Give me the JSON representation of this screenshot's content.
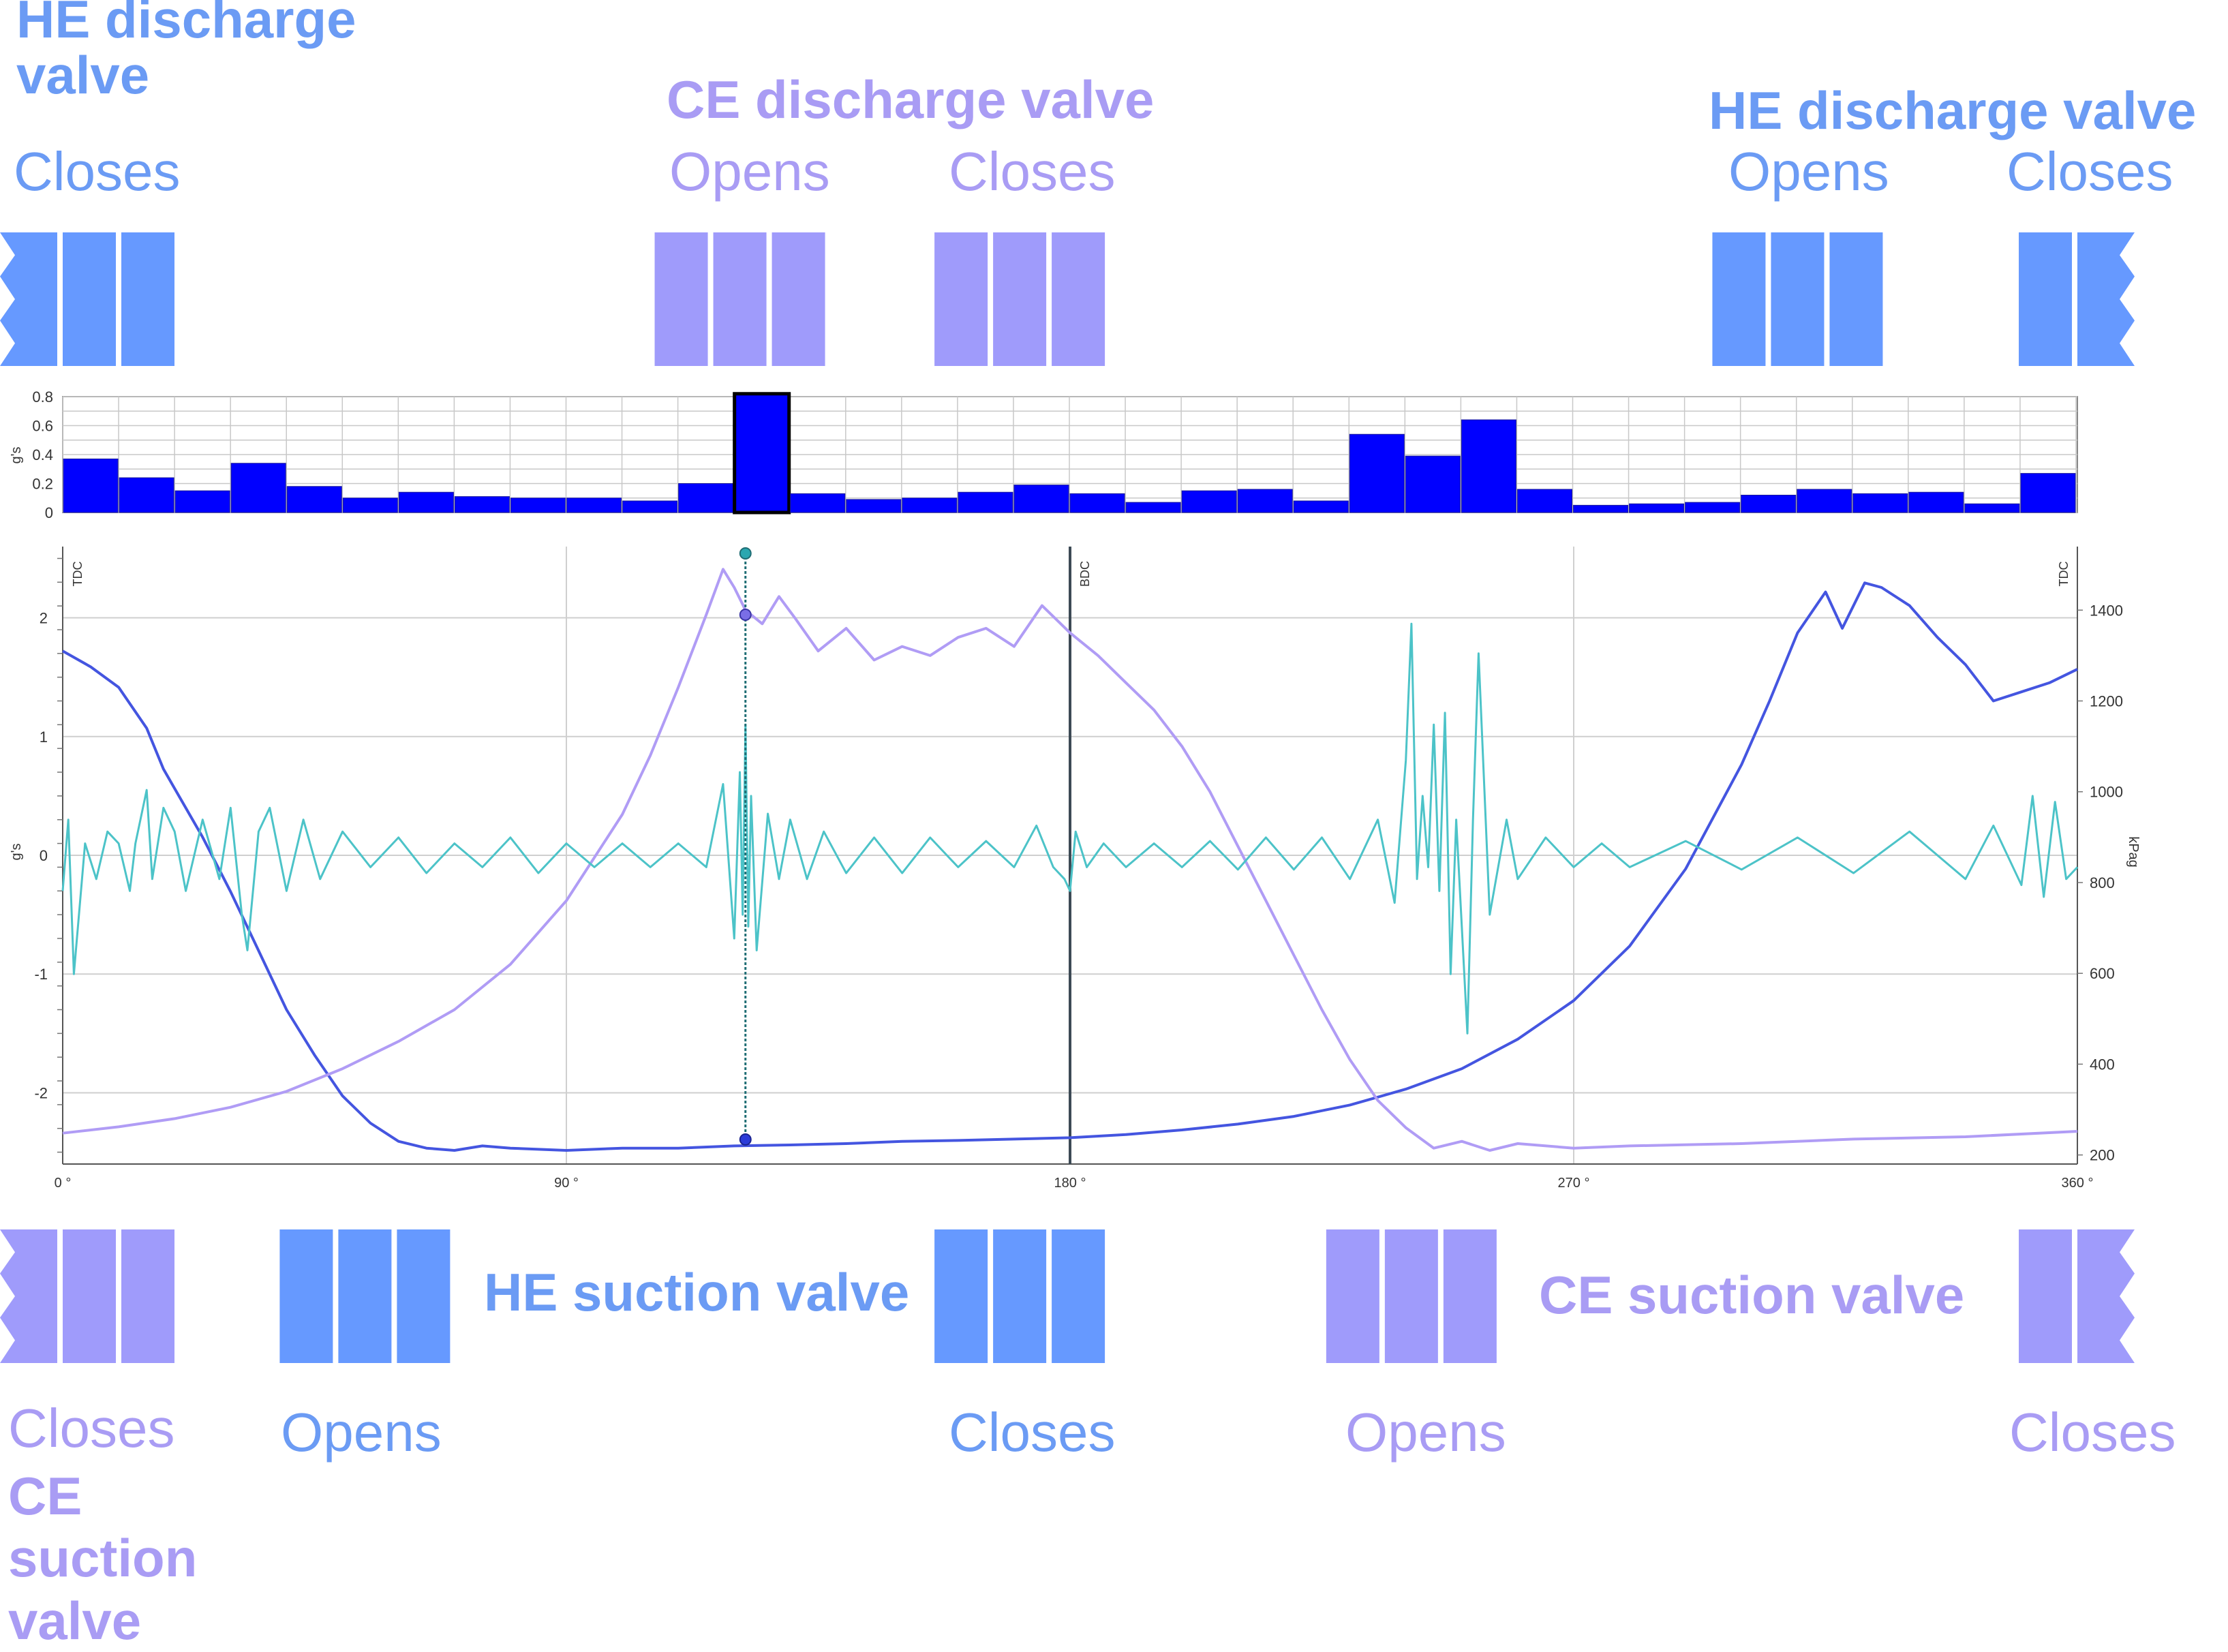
{
  "colors": {
    "he": "#6699ff",
    "ce": "#9f9bfb",
    "he_text": "#6b9bf4",
    "ce_text": "#a99cf4",
    "bar": "#0000ff",
    "vibration": "#4cc3c8",
    "he_pressure": "#4455e0",
    "ce_pressure": "#b09cf5",
    "cursor": "#2aa7b0"
  },
  "labels": {
    "he_discharge_top_left": "HE  discharge\nvalve",
    "ce_discharge": "CE discharge valve",
    "he_discharge_top_right": "HE discharge valve",
    "he_suction": "HE suction valve",
    "ce_suction": "CE suction valve",
    "ce_suction_bottom_left": "CE\nsuction\nvalve",
    "top_closes_1": "Closes",
    "top_opens_1": "Opens",
    "top_closes_2": "Closes",
    "top_opens_2": "Opens",
    "top_closes_3": "Closes",
    "bot_closes_1": "Closes",
    "bot_opens_1": "Opens",
    "bot_closes_2": "Closes",
    "bot_opens_2": "Opens",
    "bot_closes_3": "Closes"
  },
  "valve_events": {
    "top": [
      {
        "valve": "HE",
        "edge": "left-cut",
        "deg": 5
      },
      {
        "valve": "CE",
        "deg": 121
      },
      {
        "valve": "CE",
        "deg": 171
      },
      {
        "valve": "HE",
        "deg": 310
      },
      {
        "valve": "HE",
        "edge": "right-cut",
        "deg": 360
      }
    ],
    "bottom": [
      {
        "valve": "CE",
        "edge": "left-cut",
        "deg": 5
      },
      {
        "valve": "HE",
        "deg": 54
      },
      {
        "valve": "HE",
        "deg": 171
      },
      {
        "valve": "CE",
        "deg": 241
      },
      {
        "valve": "CE",
        "edge": "right-cut",
        "deg": 360
      }
    ]
  },
  "chart_data": [
    {
      "type": "bar",
      "ylabel": "g's",
      "ylim": [
        0,
        0.8
      ],
      "yticks": [
        "0",
        "0.2",
        "0.4",
        "0.6",
        "0.8"
      ],
      "grid": true,
      "highlight_index": 12,
      "values": [
        0.37,
        0.24,
        0.15,
        0.34,
        0.18,
        0.1,
        0.14,
        0.11,
        0.1,
        0.1,
        0.08,
        0.2,
        0.82,
        0.13,
        0.09,
        0.1,
        0.14,
        0.19,
        0.13,
        0.07,
        0.15,
        0.16,
        0.08,
        0.54,
        0.39,
        0.64,
        0.16,
        0.05,
        0.06,
        0.07,
        0.12,
        0.16,
        0.13,
        0.14,
        0.06,
        0.27
      ]
    },
    {
      "type": "line",
      "ylabel": "g's",
      "y2label": "kPag",
      "xlim": [
        0,
        360
      ],
      "ylim": [
        -2.6,
        2.6
      ],
      "y2lim": [
        180,
        1540
      ],
      "xticks": [
        "0 °",
        "90 °",
        "180 °",
        "270 °",
        "360 °"
      ],
      "yticks": [
        "-2",
        "-1",
        "0",
        "1",
        "2"
      ],
      "y2ticks": [
        "200",
        "400",
        "600",
        "800",
        "1000",
        "1200",
        "1400"
      ],
      "vlines": [
        {
          "deg": 0,
          "label": "TDC"
        },
        {
          "deg": 180,
          "label": "BDC"
        },
        {
          "deg": 360,
          "label": "TDC"
        }
      ],
      "cursor_deg": 122,
      "series": [
        {
          "role": "he_pressure",
          "axis": "right",
          "x": [
            0,
            5,
            10,
            15,
            18,
            25,
            30,
            35,
            40,
            45,
            50,
            55,
            60,
            65,
            70,
            75,
            80,
            90,
            100,
            110,
            120,
            130,
            140,
            150,
            160,
            170,
            180,
            190,
            200,
            210,
            220,
            230,
            240,
            250,
            260,
            270,
            280,
            290,
            300,
            305,
            310,
            315,
            318,
            322,
            325,
            330,
            335,
            340,
            345,
            350,
            355,
            360
          ],
          "y": [
            1310,
            1275,
            1230,
            1140,
            1050,
            900,
            780,
            650,
            520,
            420,
            330,
            270,
            230,
            215,
            210,
            220,
            215,
            210,
            215,
            215,
            220,
            222,
            225,
            230,
            232,
            235,
            238,
            245,
            255,
            268,
            285,
            310,
            345,
            390,
            455,
            540,
            660,
            830,
            1060,
            1200,
            1350,
            1440,
            1360,
            1460,
            1450,
            1410,
            1340,
            1280,
            1200,
            1220,
            1240,
            1270
          ]
        },
        {
          "role": "ce_pressure",
          "axis": "right",
          "x": [
            0,
            10,
            20,
            30,
            40,
            50,
            60,
            70,
            80,
            90,
            100,
            105,
            110,
            115,
            118,
            120,
            122,
            125,
            128,
            131,
            135,
            140,
            145,
            150,
            155,
            160,
            165,
            170,
            175,
            180,
            185,
            190,
            195,
            200,
            205,
            210,
            215,
            220,
            225,
            230,
            235,
            240,
            245,
            250,
            255,
            260,
            270,
            280,
            300,
            320,
            340,
            360
          ],
          "y": [
            248,
            262,
            280,
            305,
            340,
            390,
            450,
            520,
            620,
            760,
            950,
            1080,
            1230,
            1390,
            1490,
            1450,
            1400,
            1370,
            1430,
            1380,
            1310,
            1360,
            1290,
            1320,
            1300,
            1340,
            1360,
            1320,
            1410,
            1350,
            1300,
            1240,
            1180,
            1100,
            1000,
            880,
            760,
            640,
            520,
            410,
            320,
            260,
            215,
            230,
            210,
            225,
            215,
            220,
            225,
            235,
            240,
            252
          ]
        },
        {
          "role": "vibration",
          "axis": "left",
          "x": [
            0,
            1,
            2,
            4,
            6,
            8,
            10,
            12,
            13,
            15,
            16,
            18,
            20,
            22,
            25,
            28,
            30,
            32,
            33,
            35,
            37,
            40,
            43,
            46,
            50,
            55,
            60,
            65,
            70,
            75,
            80,
            85,
            90,
            95,
            100,
            105,
            110,
            115,
            118,
            120,
            121,
            121.5,
            122,
            122.5,
            123,
            124,
            126,
            128,
            130,
            133,
            136,
            140,
            145,
            150,
            155,
            160,
            165,
            170,
            174,
            177,
            179,
            180,
            181,
            183,
            186,
            190,
            195,
            200,
            205,
            210,
            215,
            220,
            225,
            230,
            235,
            238,
            240,
            241,
            242,
            243,
            244,
            245,
            246,
            247,
            248,
            249,
            250,
            251,
            252,
            253,
            255,
            258,
            260,
            265,
            270,
            275,
            280,
            290,
            300,
            310,
            320,
            330,
            340,
            345,
            350,
            352,
            354,
            356,
            358,
            360
          ],
          "y": [
            -0.3,
            0.3,
            -1.0,
            0.1,
            -0.2,
            0.2,
            0.1,
            -0.3,
            0.1,
            0.55,
            -0.2,
            0.4,
            0.2,
            -0.3,
            0.3,
            -0.2,
            0.4,
            -0.5,
            -0.8,
            0.2,
            0.4,
            -0.3,
            0.3,
            -0.2,
            0.2,
            -0.1,
            0.15,
            -0.15,
            0.1,
            -0.1,
            0.15,
            -0.15,
            0.1,
            -0.1,
            0.1,
            -0.1,
            0.1,
            -0.1,
            0.6,
            -0.7,
            0.7,
            -0.5,
            1.1,
            -0.6,
            0.5,
            -0.8,
            0.35,
            -0.2,
            0.3,
            -0.2,
            0.2,
            -0.15,
            0.15,
            -0.15,
            0.15,
            -0.1,
            0.12,
            -0.1,
            0.25,
            -0.1,
            -0.2,
            -0.3,
            0.2,
            -0.1,
            0.1,
            -0.1,
            0.1,
            -0.1,
            0.12,
            -0.12,
            0.15,
            -0.12,
            0.15,
            -0.2,
            0.3,
            -0.4,
            0.8,
            1.95,
            -0.2,
            0.5,
            -0.1,
            1.1,
            -0.3,
            1.2,
            -1.0,
            0.3,
            -0.6,
            -1.5,
            0.3,
            1.7,
            -0.5,
            0.3,
            -0.2,
            0.15,
            -0.1,
            0.1,
            -0.1,
            0.12,
            -0.12,
            0.15,
            -0.15,
            0.2,
            -0.2,
            0.25,
            -0.25,
            0.5,
            -0.35,
            0.45,
            -0.2,
            -0.1
          ]
        }
      ]
    }
  ]
}
